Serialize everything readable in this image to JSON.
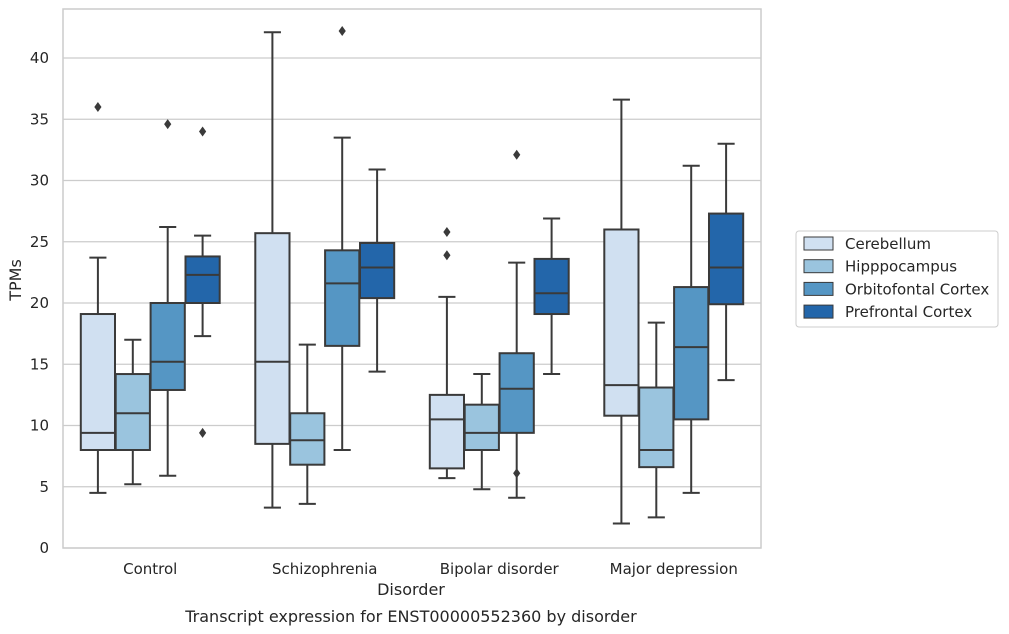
{
  "chart_data": {
    "type": "boxplot",
    "caption": "Transcript expression for ENST00000552360 by disorder",
    "xlabel": "Disorder",
    "ylabel": "TPMs",
    "ylim": [
      0,
      44
    ],
    "yticks": [
      0,
      5,
      10,
      15,
      20,
      25,
      30,
      35,
      40
    ],
    "grid": "horizontal",
    "legend_position": "right",
    "categories": [
      "Control",
      "Schizophrenia",
      "Bipolar disorder",
      "Major depression"
    ],
    "series": [
      {
        "name": "Cerebellum",
        "color": "#d0e0f1",
        "boxes": [
          {
            "whislo": 4.5,
            "q1": 8.0,
            "med": 9.4,
            "q3": 19.1,
            "whishi": 23.7,
            "fliers": [
              36.0
            ]
          },
          {
            "whislo": 3.3,
            "q1": 8.5,
            "med": 15.2,
            "q3": 25.7,
            "whishi": 42.1,
            "fliers": []
          },
          {
            "whislo": 5.7,
            "q1": 6.5,
            "med": 10.5,
            "q3": 12.5,
            "whishi": 20.5,
            "fliers": [
              23.9,
              25.8
            ]
          },
          {
            "whislo": 2.0,
            "q1": 10.8,
            "med": 13.3,
            "q3": 26.0,
            "whishi": 36.6,
            "fliers": []
          }
        ]
      },
      {
        "name": "Hipppocampus",
        "color": "#9ac4de",
        "boxes": [
          {
            "whislo": 5.2,
            "q1": 8.0,
            "med": 11.0,
            "q3": 14.2,
            "whishi": 17.0,
            "fliers": []
          },
          {
            "whislo": 3.6,
            "q1": 6.8,
            "med": 8.8,
            "q3": 11.0,
            "whishi": 16.6,
            "fliers": []
          },
          {
            "whislo": 4.8,
            "q1": 8.0,
            "med": 9.4,
            "q3": 11.7,
            "whishi": 14.2,
            "fliers": []
          },
          {
            "whislo": 2.5,
            "q1": 6.6,
            "med": 8.0,
            "q3": 13.1,
            "whishi": 18.4,
            "fliers": []
          }
        ]
      },
      {
        "name": "Orbitofontal Cortex",
        "color": "#5596c4",
        "boxes": [
          {
            "whislo": 5.9,
            "q1": 12.9,
            "med": 15.2,
            "q3": 20.0,
            "whishi": 26.2,
            "fliers": [
              34.6
            ]
          },
          {
            "whislo": 8.0,
            "q1": 16.5,
            "med": 21.6,
            "q3": 24.3,
            "whishi": 33.5,
            "fliers": [
              42.2
            ]
          },
          {
            "whislo": 4.1,
            "q1": 9.4,
            "med": 13.0,
            "q3": 15.9,
            "whishi": 23.3,
            "fliers": [
              6.1,
              32.1
            ]
          },
          {
            "whislo": 4.5,
            "q1": 10.5,
            "med": 16.4,
            "q3": 21.3,
            "whishi": 31.2,
            "fliers": []
          }
        ]
      },
      {
        "name": "Prefrontal Cortex",
        "color": "#2366aa",
        "boxes": [
          {
            "whislo": 17.3,
            "q1": 20.0,
            "med": 22.3,
            "q3": 23.8,
            "whishi": 25.5,
            "fliers": [
              9.4,
              34.0
            ]
          },
          {
            "whislo": 14.4,
            "q1": 20.4,
            "med": 22.9,
            "q3": 24.9,
            "whishi": 30.9,
            "fliers": []
          },
          {
            "whislo": 14.2,
            "q1": 19.1,
            "med": 20.8,
            "q3": 23.6,
            "whishi": 26.9,
            "fliers": []
          },
          {
            "whislo": 13.7,
            "q1": 19.9,
            "med": 22.9,
            "q3": 27.3,
            "whishi": 33.0,
            "fliers": []
          }
        ]
      }
    ]
  }
}
